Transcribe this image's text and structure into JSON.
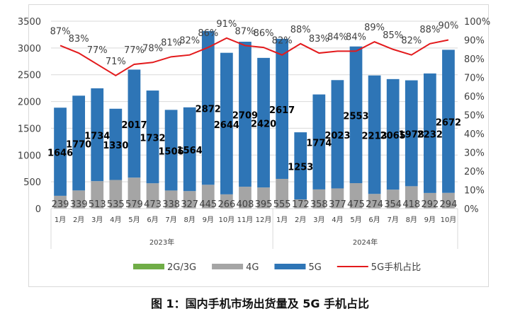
{
  "chart_data": {
    "type": "bar",
    "title": "",
    "caption": "图 1：国内手机市场出货量及 5G 手机占比",
    "categories": [
      "1月",
      "2月",
      "3月",
      "4月",
      "5月",
      "6月",
      "7月",
      "8月",
      "9月",
      "10月",
      "11月",
      "12月",
      "1月",
      "2月",
      "3月",
      "4月",
      "5月",
      "6月",
      "7月",
      "8月",
      "9月",
      "10月"
    ],
    "year_groups": [
      {
        "label": "2023年",
        "count": 12
      },
      {
        "label": "2024年",
        "count": 10
      }
    ],
    "series": [
      {
        "name": "2G/3G",
        "type": "bar",
        "color": "#70ad47",
        "values": [
          0,
          0,
          0,
          0,
          0,
          0,
          0,
          0,
          0,
          0,
          0,
          0,
          0,
          0,
          0,
          0,
          0,
          0,
          0,
          0,
          0,
          0
        ]
      },
      {
        "name": "4G",
        "type": "bar",
        "color": "#a5a5a5",
        "values": [
          239,
          339,
          513,
          535,
          579,
          473,
          338,
          327,
          445,
          266,
          408,
          395,
          555,
          172,
          358,
          377,
          475,
          274,
          354,
          418,
          292,
          294
        ]
      },
      {
        "name": "5G",
        "type": "bar",
        "color": "#2e75b6",
        "values": [
          1646,
          1770,
          1734,
          1330,
          2017,
          1732,
          1506,
          1564,
          2872,
          2644,
          2709,
          2420,
          2617,
          1253,
          1774,
          2023,
          2553,
          2213,
          2065,
          1978,
          2232,
          2672
        ]
      },
      {
        "name": "5G手机占比",
        "type": "line",
        "axis": "right",
        "color": "#e31a1c",
        "values": [
          87,
          83,
          77,
          71,
          77,
          78,
          81,
          82,
          86,
          91,
          87,
          86,
          82,
          88,
          83,
          84,
          84,
          89,
          85,
          82,
          88,
          90
        ]
      }
    ],
    "ylim": [
      0,
      3500
    ],
    "yticks": [
      "0",
      "500",
      "1000",
      "1500",
      "2000",
      "2500",
      "3000",
      "3500"
    ],
    "y2lim": [
      0,
      100
    ],
    "y2ticks": [
      "0%",
      "10%",
      "20%",
      "30%",
      "40%",
      "50%",
      "60%",
      "70%",
      "80%",
      "90%",
      "100%"
    ],
    "grid": true,
    "legend": "bottom"
  }
}
